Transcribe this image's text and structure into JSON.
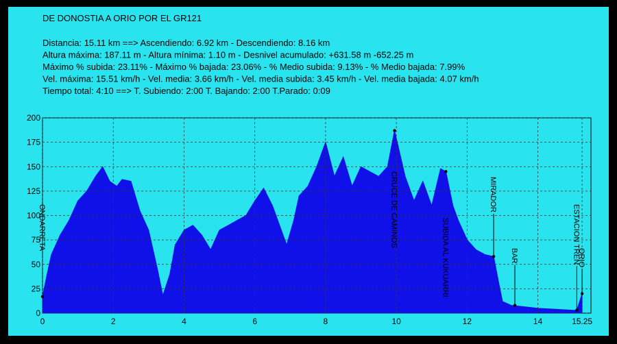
{
  "chart_data": {
    "type": "area",
    "title": "DE DONOSTIA A ORIO POR EL GR121",
    "info_lines": [
      "Distancia: 15.11 km   ==>   Ascendiendo: 6.92 km - Descendiendo: 8.16 km",
      "Altura máxima: 187.11 m - Altura mínima: 1.10 m - Desnivel acumulado: +631.58 m  -652.25 m",
      "Máximo % subida: 23.11%  - Máximo % bajada: 23.06%  - % Medio subida: 9.13%  - % Medio bajada: 7.99%",
      "Vel. máxima: 15.51 km/h - Vel. media: 3.66 km/h - Vel. media subida: 3.45 km/h - Vel. media bajada: 4.07 km/h",
      "Tiempo total: 4:10   ==>   T. Subiendo: 2:00  T. Bajando: 2:00  T.Parado: 0:09"
    ],
    "x": [
      0,
      0.1,
      0.25,
      0.5,
      0.75,
      1.0,
      1.25,
      1.5,
      1.7,
      1.9,
      2.1,
      2.25,
      2.5,
      2.75,
      3.0,
      3.25,
      3.4,
      3.6,
      3.75,
      4.0,
      4.25,
      4.5,
      4.75,
      5.0,
      5.25,
      5.5,
      5.75,
      6.0,
      6.25,
      6.5,
      6.75,
      6.9,
      7.1,
      7.25,
      7.5,
      7.75,
      8.0,
      8.25,
      8.5,
      8.75,
      9.0,
      9.25,
      9.5,
      9.75,
      9.95,
      10.25,
      10.5,
      10.75,
      11.0,
      11.25,
      11.4,
      11.6,
      11.75,
      12.0,
      12.25,
      12.5,
      12.75,
      12.9,
      13.0,
      13.25,
      13.5,
      13.75,
      14.0,
      14.5,
      15.0,
      15.1,
      15.25
    ],
    "values": [
      17,
      35,
      60,
      80,
      95,
      115,
      125,
      140,
      150,
      135,
      130,
      137,
      135,
      105,
      85,
      45,
      18,
      40,
      70,
      85,
      90,
      80,
      65,
      85,
      90,
      95,
      100,
      115,
      128,
      110,
      85,
      70,
      95,
      120,
      130,
      150,
      175,
      140,
      160,
      130,
      150,
      145,
      140,
      150,
      187,
      140,
      115,
      135,
      110,
      148,
      145,
      110,
      95,
      75,
      65,
      60,
      58,
      30,
      12,
      8,
      7,
      6,
      5,
      4,
      3,
      3,
      20
    ],
    "color": "#1010e8",
    "background": "#29e3ef",
    "xlim": [
      0,
      15.5
    ],
    "xticks": [
      0,
      2,
      4,
      6,
      8,
      10,
      12,
      14,
      15.25
    ],
    "ylim": [
      0,
      200
    ],
    "yticks": [
      0,
      25,
      50,
      75,
      100,
      125,
      150,
      175,
      200
    ],
    "grid": true,
    "waypoints": [
      {
        "name": "ONDARRETA",
        "x": 0,
        "y": 17
      },
      {
        "name": "CRUCE DE CAMINOS",
        "x": 9.95,
        "y": 187
      },
      {
        "name": "SUBIDA AL KUKUARRI",
        "x": 11.4,
        "y": 145
      },
      {
        "name": "MIRADOR",
        "x": 12.75,
        "y": 58
      },
      {
        "name": "BAR",
        "x": 13.35,
        "y": 8
      },
      {
        "name": "ESTACION TREN",
        "x": 15.1,
        "y": 3
      },
      {
        "name": "ORIO",
        "x": 15.25,
        "y": 20
      }
    ]
  }
}
